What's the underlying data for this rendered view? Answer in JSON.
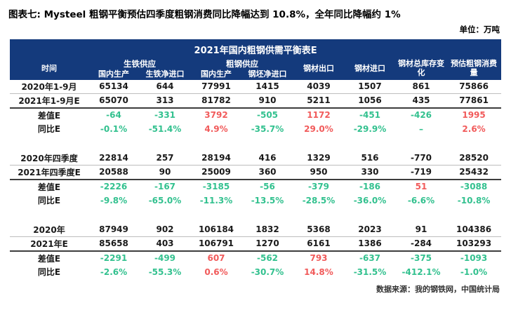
{
  "title": "图表七: Mysteel 粗钢平衡预估四季度粗钢消费同比降幅达到 10.8%，全年同比降幅约 1%",
  "unit_label": "单位：万吨",
  "source": "数据来源：我的钢铁网，中国统计局",
  "colors": {
    "header_bg": "#143A7C",
    "negative_green": "#33C18F",
    "positive_red": "#F15B5B"
  },
  "table": {
    "header_title": "2021年国内粗钢供需平衡表E",
    "time_col": "时间",
    "group_pig_iron": "生铁供应",
    "group_crude_steel": "粗钢供应",
    "columns": [
      "国内生产",
      "生铁净进口",
      "国内生产",
      "钢坯净进口",
      "钢材出口",
      "钢材进口",
      "钢材总库存变化",
      "预估粗钢消费量"
    ],
    "blocks": [
      {
        "rows": [
          {
            "label": "2020年1-9月",
            "values": [
              "65134",
              "644",
              "77991",
              "1415",
              "4039",
              "1507",
              "861",
              "75866"
            ],
            "colors": [
              "k",
              "k",
              "k",
              "k",
              "k",
              "k",
              "k",
              "k"
            ]
          },
          {
            "label": "2021年1-9月E",
            "values": [
              "65070",
              "313",
              "81782",
              "910",
              "5211",
              "1056",
              "435",
              "77861"
            ],
            "colors": [
              "k",
              "k",
              "k",
              "k",
              "k",
              "k",
              "k",
              "k"
            ]
          },
          {
            "label": "差值E",
            "values": [
              "-64",
              "-331",
              "3792",
              "-505",
              "1172",
              "-451",
              "-426",
              "1995"
            ],
            "colors": [
              "g",
              "g",
              "r",
              "g",
              "r",
              "g",
              "g",
              "r"
            ]
          },
          {
            "label": "同比E",
            "values": [
              "-0.1%",
              "-51.4%",
              "4.9%",
              "-35.7%",
              "29.0%",
              "-29.9%",
              "–",
              "2.6%"
            ],
            "colors": [
              "g",
              "g",
              "r",
              "g",
              "r",
              "g",
              "g",
              "r"
            ]
          }
        ]
      },
      {
        "rows": [
          {
            "label": "2020年四季度",
            "values": [
              "22814",
              "257",
              "28194",
              "416",
              "1329",
              "516",
              "-770",
              "28520"
            ],
            "colors": [
              "k",
              "k",
              "k",
              "k",
              "k",
              "k",
              "k",
              "k"
            ]
          },
          {
            "label": "2021年四季度E",
            "values": [
              "20588",
              "90",
              "25009",
              "360",
              "950",
              "330",
              "-719",
              "25432"
            ],
            "colors": [
              "k",
              "k",
              "k",
              "k",
              "k",
              "k",
              "k",
              "k"
            ]
          },
          {
            "label": "差值E",
            "values": [
              "-2226",
              "-167",
              "-3185",
              "-56",
              "-379",
              "-186",
              "51",
              "-3088"
            ],
            "colors": [
              "g",
              "g",
              "g",
              "g",
              "g",
              "g",
              "r",
              "g"
            ]
          },
          {
            "label": "同比E",
            "values": [
              "-9.8%",
              "-65.0%",
              "-11.3%",
              "-13.5%",
              "-28.5%",
              "-36.0%",
              "-6.6%",
              "-10.8%"
            ],
            "colors": [
              "g",
              "g",
              "g",
              "g",
              "g",
              "g",
              "g",
              "g"
            ]
          }
        ]
      },
      {
        "rows": [
          {
            "label": "2020年",
            "values": [
              "87949",
              "902",
              "106184",
              "1832",
              "5368",
              "2023",
              "91",
              "104386"
            ],
            "colors": [
              "k",
              "k",
              "k",
              "k",
              "k",
              "k",
              "k",
              "k"
            ]
          },
          {
            "label": "2021年E",
            "values": [
              "85658",
              "403",
              "106791",
              "1270",
              "6161",
              "1386",
              "-284",
              "103293"
            ],
            "colors": [
              "k",
              "k",
              "k",
              "k",
              "k",
              "k",
              "k",
              "k"
            ]
          },
          {
            "label": "差值E",
            "values": [
              "-2291",
              "-499",
              "607",
              "-562",
              "793",
              "-637",
              "-375",
              "-1093"
            ],
            "colors": [
              "g",
              "g",
              "r",
              "g",
              "r",
              "g",
              "g",
              "g"
            ]
          },
          {
            "label": "同比E",
            "values": [
              "-2.6%",
              "-55.3%",
              "0.6%",
              "-30.7%",
              "14.8%",
              "-31.5%",
              "-412.1%",
              "-1.0%"
            ],
            "colors": [
              "g",
              "g",
              "r",
              "g",
              "r",
              "g",
              "g",
              "g"
            ]
          }
        ]
      }
    ]
  }
}
